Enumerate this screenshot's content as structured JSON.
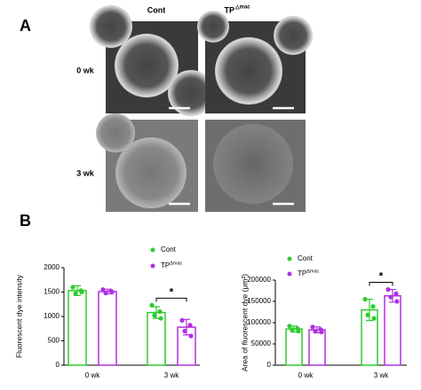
{
  "panel_a": {
    "label": "A",
    "columns": [
      {
        "text": "Cont"
      },
      {
        "text": "TP",
        "superscript": "△mac"
      }
    ],
    "rows": [
      "0 wk",
      "3 wk"
    ]
  },
  "panel_b": {
    "label": "B"
  },
  "chart_data": [
    {
      "type": "bar",
      "ylabel": "Fluorescent dye intensity",
      "categories": [
        "0 wk",
        "3 wk"
      ],
      "series": [
        {
          "name": "Cont",
          "color": "#2ecc2e",
          "values": [
            1530,
            1080
          ],
          "errors": [
            100,
            120
          ],
          "points": [
            [
              1600,
              1530,
              1470,
              1500
            ],
            [
              1230,
              1100,
              1020,
              960
            ]
          ]
        },
        {
          "name": "TP",
          "name_superscript": "Δmac",
          "color": "#b030e0",
          "values": [
            1510,
            780
          ],
          "errors": [
            50,
            160
          ],
          "points": [
            [
              1550,
              1520,
              1480,
              1500
            ],
            [
              920,
              820,
              700,
              600
            ]
          ]
        }
      ],
      "ylim": [
        0,
        2000
      ],
      "yticks": [
        0,
        500,
        1000,
        1500,
        2000
      ],
      "annotation": "*"
    },
    {
      "type": "bar",
      "ylabel": "Area of fluorescent dye (μm²)",
      "categories": [
        "0 wk",
        "3 wk"
      ],
      "series": [
        {
          "name": "Cont",
          "color": "#2ecc2e",
          "values": [
            85000,
            130000
          ],
          "errors": [
            7000,
            25000
          ],
          "points": [
            [
              92000,
              86000,
              83000,
              80000
            ],
            [
              155000,
              138000,
              118000,
              110000
            ]
          ]
        },
        {
          "name": "TP",
          "name_superscript": "Δmac",
          "color": "#b030e0",
          "values": [
            83000,
            163000
          ],
          "errors": [
            7000,
            15000
          ],
          "points": [
            [
              90000,
              84000,
              80000,
              78000
            ],
            [
              178000,
              168000,
              160000,
              150000
            ]
          ]
        }
      ],
      "ylim": [
        0,
        200000
      ],
      "yticks": [
        0,
        50000,
        100000,
        150000,
        200000
      ],
      "annotation": "*"
    }
  ]
}
